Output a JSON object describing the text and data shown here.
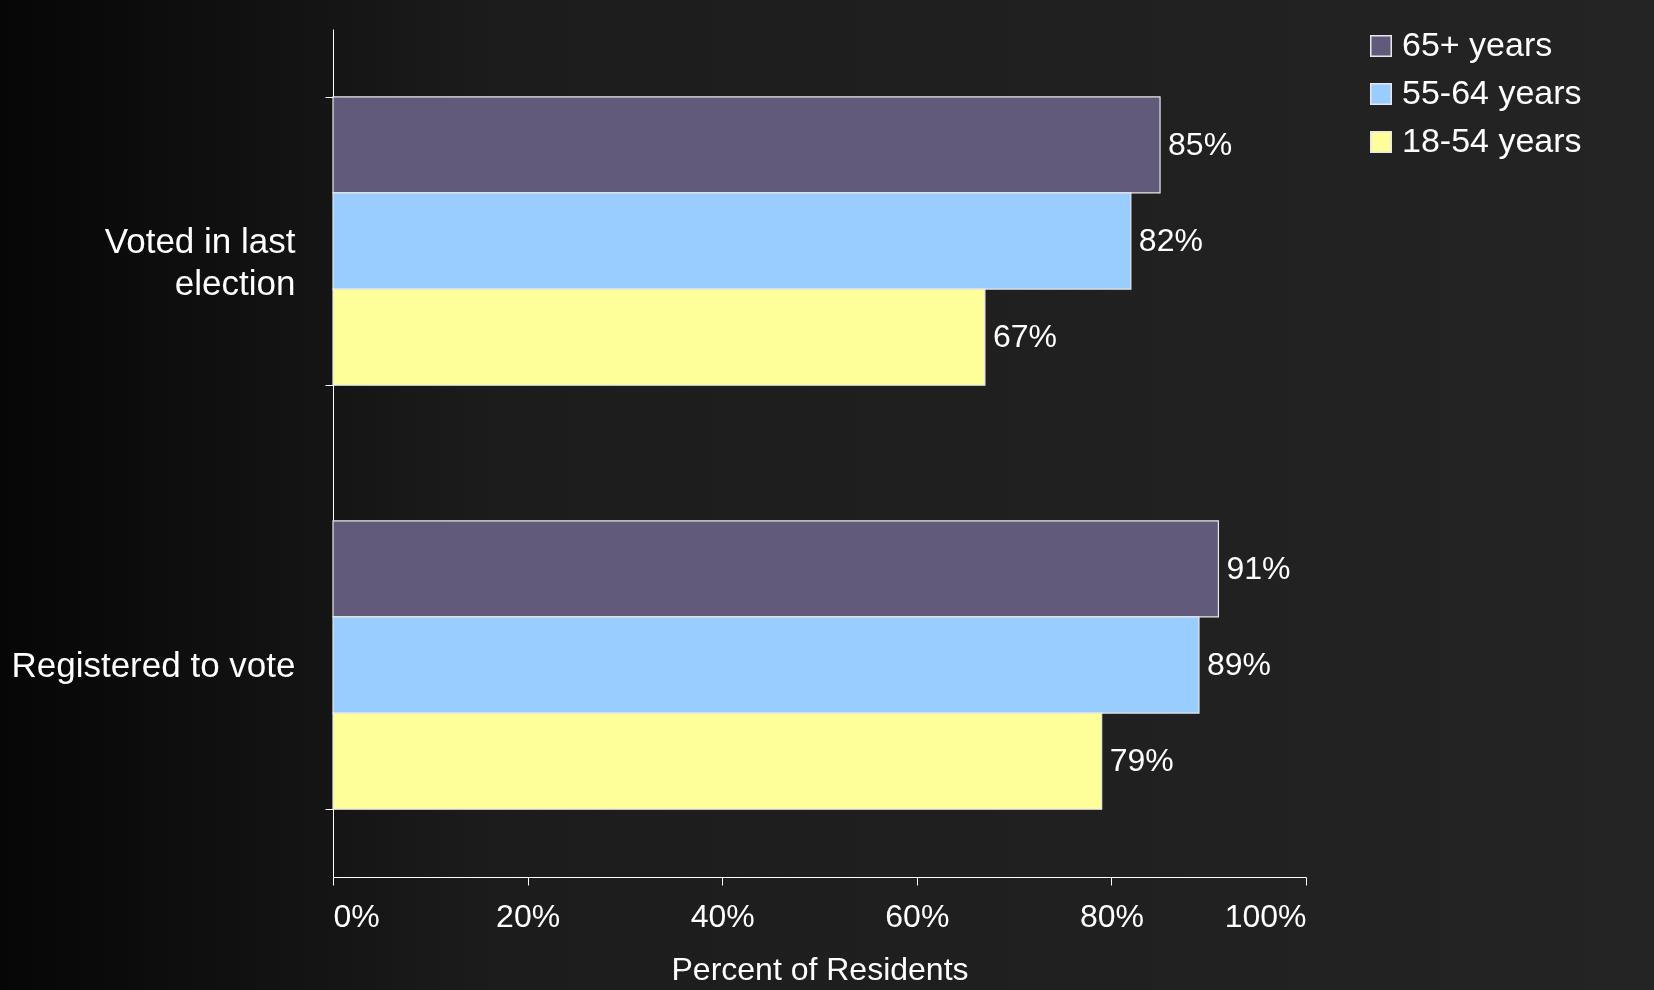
{
  "chart_data": {
    "type": "bar",
    "orientation": "horizontal",
    "xlabel": "Percent of Residents",
    "categories": [
      "Voted in last election",
      "Registered to vote"
    ],
    "series": [
      {
        "name": "65+ years",
        "color": "#615a7b",
        "values": [
          85,
          91
        ],
        "value_labels": [
          "85%",
          "91%"
        ]
      },
      {
        "name": "55-64 years",
        "color": "#99ccff",
        "values": [
          82,
          89
        ],
        "value_labels": [
          "82%",
          "89%"
        ]
      },
      {
        "name": "18-54 years",
        "color": "#ffff99",
        "values": [
          67,
          79
        ],
        "value_labels": [
          "67%",
          "79%"
        ]
      }
    ],
    "xlim": [
      0,
      100
    ],
    "xticks": [
      {
        "value": 0,
        "label": "0%"
      },
      {
        "value": 20,
        "label": "20%"
      },
      {
        "value": 40,
        "label": "40%"
      },
      {
        "value": 60,
        "label": "60%"
      },
      {
        "value": 80,
        "label": "80%"
      },
      {
        "value": 100,
        "label": "100%"
      }
    ],
    "grid": false,
    "legend": "top right"
  }
}
